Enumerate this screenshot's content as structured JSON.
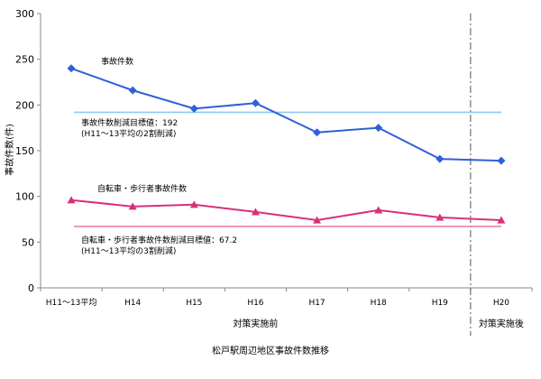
{
  "chart_data": {
    "type": "line",
    "title": "松戸駅周辺地区事故件数推移",
    "xlabel": "",
    "ylabel": "事故件数(件)",
    "ylim": [
      0,
      300
    ],
    "yticks": [
      0,
      50,
      100,
      150,
      200,
      250,
      300
    ],
    "categories": [
      "H11～13平均",
      "H14",
      "H15",
      "H16",
      "H17",
      "H18",
      "H19",
      "H20"
    ],
    "grid": false,
    "series": [
      {
        "name": "事故件数",
        "color": "#3060D8",
        "marker": "diamond",
        "values": [
          240,
          216,
          196,
          202,
          170,
          175,
          141,
          139
        ]
      },
      {
        "name": "自転車・歩行者事故件数",
        "color": "#D8307A",
        "marker": "triangle",
        "values": [
          96,
          89,
          91,
          83,
          74,
          85,
          77,
          74
        ]
      }
    ],
    "targets": [
      {
        "value": 192,
        "color": "#8CC8F0",
        "label_line1": "事故件数削減目標値：192",
        "label_line2": "(H11～13平均の2割削減)"
      },
      {
        "value": 67.2,
        "color": "#F080B0",
        "label_line1": "自転車・歩行者事故件数削減目標値：67.2",
        "label_line2": "(H11～13平均の3割削減)"
      }
    ],
    "periods": [
      {
        "label": "対策実施前",
        "from_index": 0,
        "to_index": 6
      },
      {
        "label": "対策実施後",
        "from_index": 7,
        "to_index": 7
      }
    ],
    "divider_after_index": 6
  }
}
